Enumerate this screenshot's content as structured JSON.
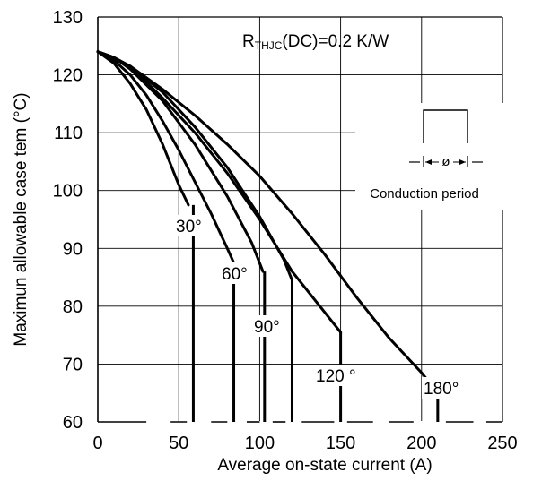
{
  "chart_data": {
    "type": "line",
    "annotation": {
      "prefix": "R",
      "subscript": "THJC",
      "suffix": "(DC)=0.2 K/W"
    },
    "xlabel": "Average on-state current (A)",
    "ylabel": "Maximun allowable case tem (°C)",
    "xlim": [
      0,
      250
    ],
    "ylim": [
      60,
      130
    ],
    "x_ticks": [
      "0",
      "50",
      "100",
      "150",
      "200",
      "250"
    ],
    "y_ticks": [
      "60",
      "70",
      "80",
      "90",
      "100",
      "110",
      "120",
      "130"
    ],
    "grid": true,
    "series": [
      {
        "name": "30°",
        "points": [
          [
            0,
            124
          ],
          [
            10,
            122
          ],
          [
            20,
            118.5
          ],
          [
            30,
            114
          ],
          [
            40,
            108
          ],
          [
            50,
            101
          ],
          [
            56,
            97.5
          ]
        ],
        "drop_x": 59
      },
      {
        "name": "60°",
        "points": [
          [
            0,
            124
          ],
          [
            10,
            122.5
          ],
          [
            20,
            120
          ],
          [
            30,
            116.5
          ],
          [
            40,
            112
          ],
          [
            50,
            107
          ],
          [
            60,
            101.5
          ],
          [
            70,
            96
          ],
          [
            80,
            90
          ],
          [
            84,
            87.5
          ]
        ],
        "drop_x": 84
      },
      {
        "name": "90°",
        "points": [
          [
            0,
            124
          ],
          [
            10,
            123
          ],
          [
            20,
            121
          ],
          [
            40,
            115.5
          ],
          [
            60,
            108
          ],
          [
            80,
            99
          ],
          [
            95,
            91
          ],
          [
            102,
            86
          ]
        ],
        "drop_x": 103
      },
      {
        "name": "120°",
        "points": [
          [
            0,
            124
          ],
          [
            10,
            123
          ],
          [
            20,
            121.5
          ],
          [
            40,
            117
          ],
          [
            60,
            111
          ],
          [
            80,
            104
          ],
          [
            100,
            95.5
          ],
          [
            115,
            88
          ],
          [
            120,
            84.5
          ]
        ],
        "drop_x": 120
      },
      {
        "name": "180°",
        "points": [
          [
            0,
            124
          ],
          [
            20,
            121.5
          ],
          [
            40,
            117.5
          ],
          [
            60,
            113
          ],
          [
            80,
            108
          ],
          [
            100,
            102.5
          ],
          [
            120,
            96
          ],
          [
            140,
            89
          ],
          [
            160,
            81.5
          ],
          [
            180,
            74.5
          ],
          [
            200,
            68.5
          ],
          [
            210,
            65
          ]
        ],
        "drop_x": 210
      },
      {
        "name": "",
        "points": [
          [
            0,
            124
          ],
          [
            10,
            123
          ],
          [
            20,
            121.5
          ],
          [
            40,
            116
          ],
          [
            60,
            110
          ],
          [
            80,
            103
          ],
          [
            100,
            95
          ],
          [
            120,
            86
          ],
          [
            140,
            79
          ],
          [
            150,
            75.5
          ]
        ],
        "drop_x": 150
      }
    ],
    "series_labels": [
      "30°",
      "60°",
      "90°",
      "120 °",
      "180°"
    ],
    "inset_label": "Conduction period",
    "inset_symbol": "ø"
  }
}
